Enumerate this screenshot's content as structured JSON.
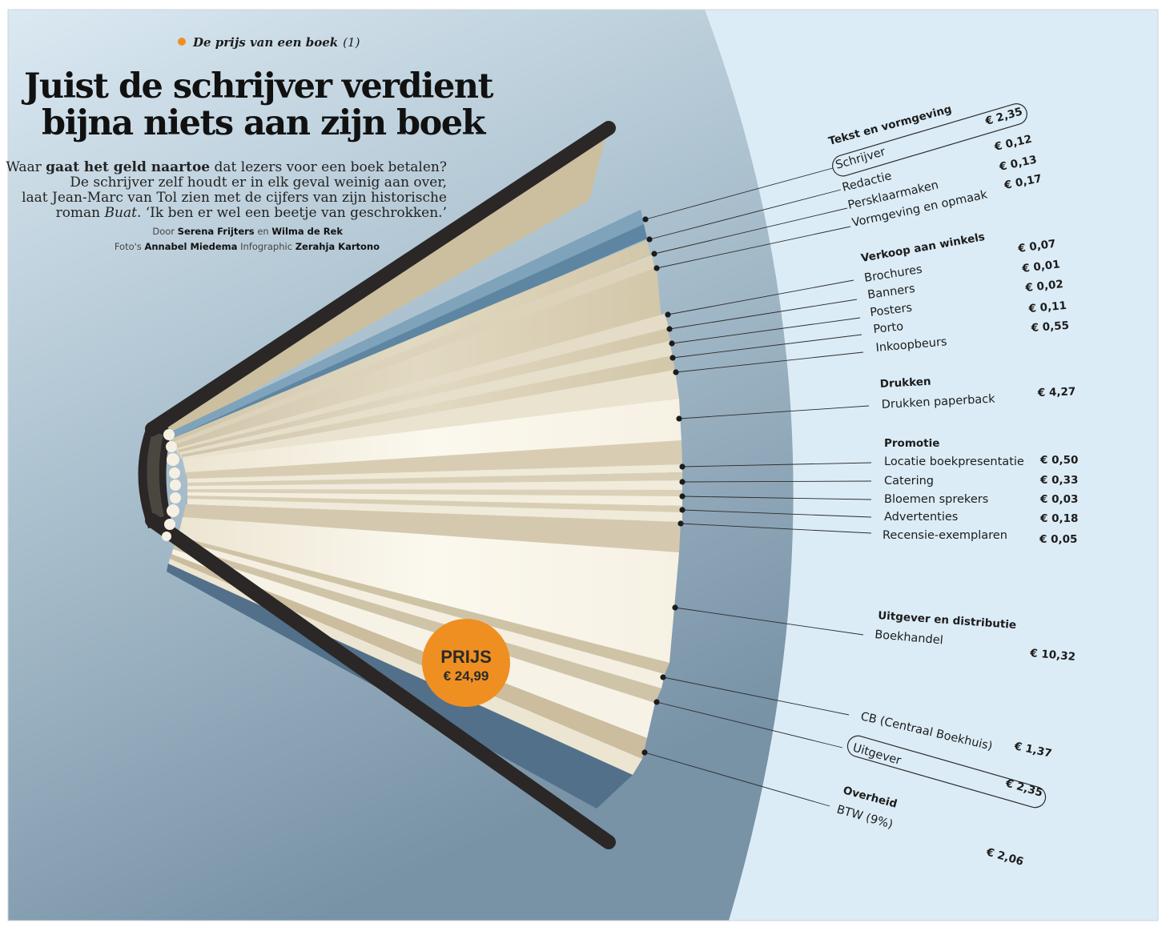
{
  "kicker": {
    "label": "De prijs van een boek",
    "part": "(1)"
  },
  "headline": {
    "line1": "Juist de schrijver verdient",
    "line2": "bijna niets aan zijn boek"
  },
  "intro": {
    "lead": "Waar ",
    "bold": "gaat het geld naartoe",
    "rest1": " dat lezers voor een boek betalen?",
    "line2": "De schrijver zelf houdt er in elk geval weinig aan over,",
    "line3": "laat Jean-Marc van Tol zien met de cijfers van zijn historische",
    "line4a": "roman ",
    "line4title": "Buat",
    "line4b": ". ‘Ik ben er wel een beetje van geschrokken.’"
  },
  "credits": {
    "byline_prefix": "Door",
    "author1": "Serena Frijters",
    "and": "en",
    "author2": "Wilma de Rek",
    "photo_prefix": "Foto's",
    "photographer": "Annabel Miedema",
    "infographic_prefix": "Infographic",
    "designer": "Zerahja Kartono"
  },
  "price_badge": {
    "label": "PRIJS",
    "value": "€ 24,99"
  },
  "groups": [
    {
      "title": "Tekst en vormgeving",
      "items": [
        {
          "label": "Schrijver",
          "value": "€ 2,35",
          "highlight": true
        },
        {
          "label": "Redactie",
          "value": "€ 0,12"
        },
        {
          "label": "Persklaarmaken",
          "value": "€ 0,13"
        },
        {
          "label": "Vormgeving en opmaak",
          "value": "€ 0,17"
        }
      ]
    },
    {
      "title": "Verkoop aan winkels",
      "items": [
        {
          "label": "Brochures",
          "value": "€ 0,07"
        },
        {
          "label": "Banners",
          "value": "€ 0,01"
        },
        {
          "label": "Posters",
          "value": "€ 0,02"
        },
        {
          "label": "Porto",
          "value": "€ 0,11"
        },
        {
          "label": "Inkoopbeurs",
          "value": "€ 0,55"
        }
      ]
    },
    {
      "title": "Drukken",
      "items": [
        {
          "label": "Drukken paperback",
          "value": "€ 4,27"
        }
      ]
    },
    {
      "title": "Promotie",
      "items": [
        {
          "label": "Locatie boekpresentatie",
          "value": "€ 0,50"
        },
        {
          "label": "Catering",
          "value": "€ 0,33"
        },
        {
          "label": "Bloemen sprekers",
          "value": "€ 0,03"
        },
        {
          "label": "Advertenties",
          "value": "€ 0,18"
        },
        {
          "label": "Recensie-exemplaren",
          "value": "€ 0,05"
        }
      ]
    },
    {
      "title": "Uitgever en distributie",
      "items": [
        {
          "label": "Boekhandel",
          "value": "€ 10,32"
        },
        {
          "label": "CB (Centraal Boekhuis)",
          "value": "€ 1,37"
        },
        {
          "label": "Uitgever",
          "value": "€ 2,35",
          "highlight": true
        }
      ]
    },
    {
      "title": "Overheid",
      "items": [
        {
          "label": "BTW (9%)",
          "value": "€ 2,06"
        }
      ]
    }
  ],
  "colors": {
    "orange": "#ef8f22",
    "cover": "#2b2727",
    "page": "#f8f4e8",
    "page_shadow": "#cfc3a9",
    "blue_page": "#5e86a2",
    "right_bg": "#dcecf6"
  }
}
